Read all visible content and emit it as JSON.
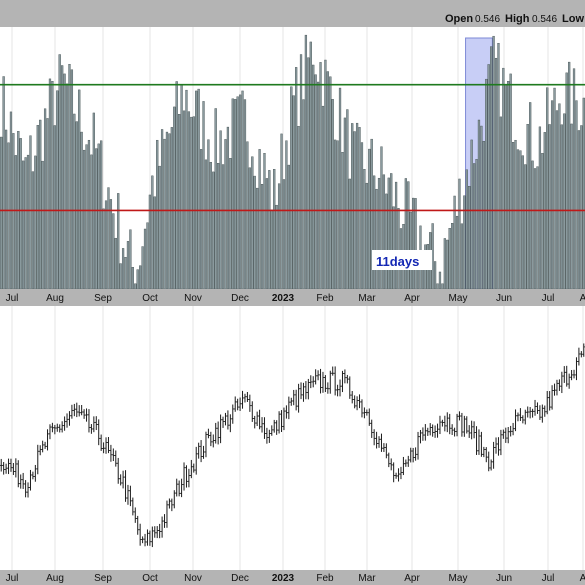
{
  "header": {
    "open_label": "Open",
    "open_value": "0.546",
    "high_label": "High",
    "high_value": "0.546",
    "low_label": "Low"
  },
  "colors": {
    "bar_fill": "#8a9a9e",
    "bar_stroke": "#3e4a4c",
    "upper_line": "#1f7a1f",
    "lower_line": "#c01818",
    "highlight": "#9aa6ee",
    "annotation_text": "#1428b4",
    "price_stroke": "#1a1a1a"
  },
  "annotation": {
    "text": "11days"
  },
  "chart_data": [
    {
      "type": "bar",
      "panel": "top",
      "x_axis": [
        "Jul",
        "Aug",
        "Sep",
        "Oct",
        "Nov",
        "Dec",
        "2023",
        "Feb",
        "Mar",
        "Apr",
        "May",
        "Jun",
        "Jul",
        "A"
      ],
      "y_axis": "none printed",
      "reference_lines": [
        {
          "value": 0.78,
          "color": "green"
        },
        {
          "value": 0.3,
          "color": "red"
        }
      ],
      "highlight_band": {
        "start_bar": 191,
        "end_bar": 201,
        "label": "11days"
      },
      "ylim": [
        0,
        1
      ],
      "values": []
    },
    {
      "type": "ohlc",
      "panel": "bottom",
      "x_axis": [
        "Jul",
        "Aug",
        "Sep",
        "Oct",
        "Nov",
        "Dec",
        "2023",
        "Feb",
        "Mar",
        "Apr",
        "May",
        "Jun",
        "Jul",
        "A"
      ],
      "y_axis": "none printed",
      "ylim": [
        0,
        1
      ],
      "close": []
    }
  ]
}
